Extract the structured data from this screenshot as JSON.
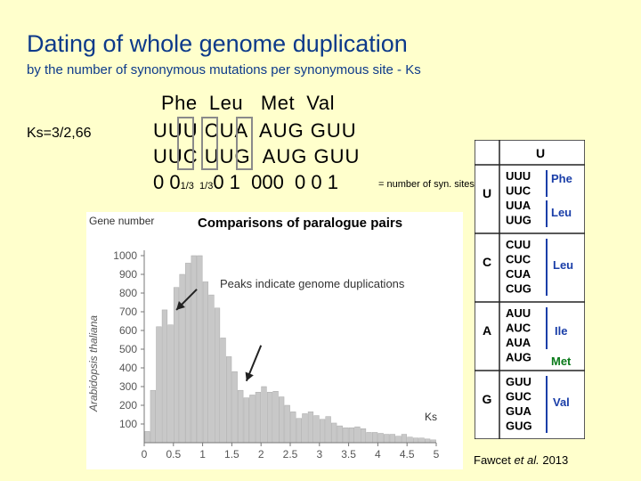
{
  "title": "Dating of whole genome duplication",
  "subtitle": "by the number of synonymous mutations per synonymous site - Ks",
  "ks_formula": "Ks=3/2,66",
  "example": {
    "amino_acids": "Phe  Leu   Met  Val",
    "codons_row1": "UUU CUA  AUG GUU",
    "codons_row2": "UUC UUG  AUG GUU",
    "syn_row": {
      "a": "0 0",
      "b": "1/3",
      "c": "1/3",
      "d": "0 1  000  0 0 1"
    },
    "syn_note": "= number of syn. sites"
  },
  "chart_data": {
    "type": "bar",
    "title": "Comparisons of paralogue pairs",
    "annotation": "Peaks indicate genome duplications",
    "xlabel": "Ks",
    "ylabel": "Arabidopsis thaliana",
    "y_header": "Gene number",
    "xlim": [
      0,
      5
    ],
    "ylim": [
      0,
      1000
    ],
    "xticks": [
      "0",
      "0.5",
      "1",
      "1.5",
      "2",
      "2.5",
      "3",
      "3.5",
      "4",
      "4.5",
      "5"
    ],
    "yticks": [
      "100",
      "200",
      "300",
      "400",
      "500",
      "600",
      "700",
      "800",
      "900",
      "1000"
    ],
    "bin_width": 0.1,
    "values": [
      60,
      280,
      620,
      710,
      630,
      830,
      900,
      960,
      1000,
      1000,
      860,
      790,
      720,
      560,
      460,
      380,
      280,
      240,
      255,
      270,
      300,
      270,
      275,
      245,
      200,
      165,
      130,
      155,
      165,
      145,
      125,
      140,
      105,
      90,
      80,
      80,
      85,
      75,
      55,
      55,
      50,
      45,
      45,
      35,
      45,
      30,
      25,
      25,
      20,
      15
    ],
    "arrows": [
      {
        "from": [
          0.9,
          820
        ],
        "to": [
          0.55,
          710
        ]
      },
      {
        "from": [
          2.0,
          520
        ],
        "to": [
          1.75,
          330
        ]
      }
    ],
    "bar_color": "#c8c8c8"
  },
  "codon_table": {
    "header": "U",
    "rows": [
      {
        "first": "U",
        "codons": [
          "UUU",
          "UUC",
          "UUA",
          "UUG"
        ],
        "aa": [
          {
            "label": "Phe",
            "color": "#1a3ea8"
          },
          {
            "label": "Leu",
            "color": "#1a3ea8"
          }
        ]
      },
      {
        "first": "C",
        "codons": [
          "CUU",
          "CUC",
          "CUA",
          "CUG"
        ],
        "aa": [
          {
            "label": "Leu",
            "color": "#1a3ea8"
          }
        ]
      },
      {
        "first": "A",
        "codons": [
          "AUU",
          "AUC",
          "AUA",
          "AUG"
        ],
        "aa": [
          {
            "label": "Ile",
            "color": "#1a3ea8"
          },
          {
            "label": "Met",
            "color": "#0a7a1a"
          }
        ]
      },
      {
        "first": "G",
        "codons": [
          "GUU",
          "GUC",
          "GUA",
          "GUG"
        ],
        "aa": [
          {
            "label": "Val",
            "color": "#1a3ea8"
          }
        ]
      }
    ]
  },
  "citation": {
    "author": "Fawcet",
    "etal": "et al.",
    "year": "2013"
  }
}
